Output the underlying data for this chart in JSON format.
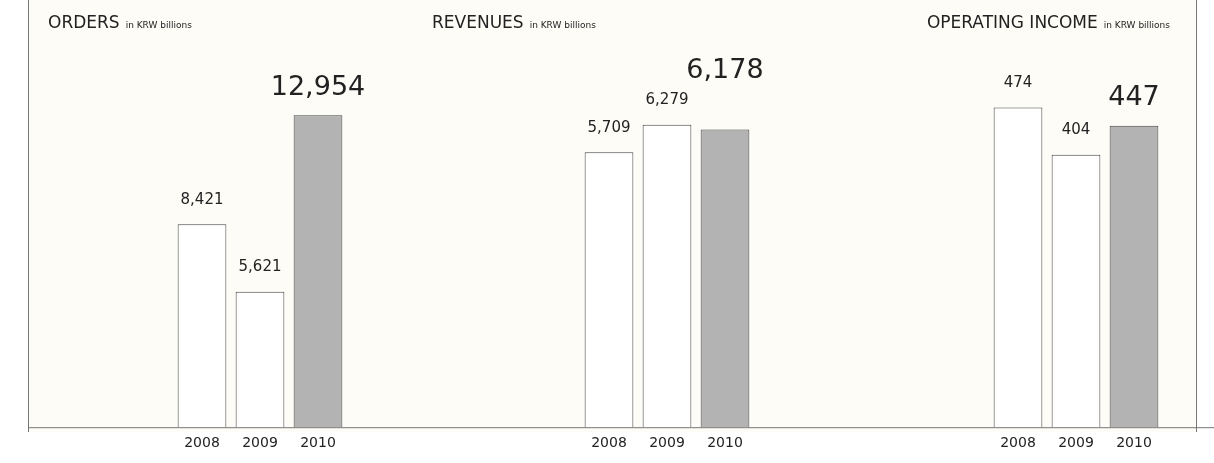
{
  "chart_data": [
    {
      "type": "bar",
      "title": "ORDERS",
      "subtitle": "in KRW billions",
      "categories": [
        "2008",
        "2009",
        "2010"
      ],
      "values": [
        8421,
        5621,
        12954
      ],
      "value_labels": [
        "8,421",
        "5,621",
        "12,954"
      ],
      "colors": [
        "#ffffff",
        "#ffffff",
        "#b3b3b3"
      ],
      "legend": false,
      "grid": false
    },
    {
      "type": "bar",
      "title": "REVENUES",
      "subtitle": "in KRW billions",
      "categories": [
        "2008",
        "2009",
        "2010"
      ],
      "values": [
        5709,
        6279,
        6178
      ],
      "value_labels": [
        "5,709",
        "6,279",
        "6,178"
      ],
      "colors": [
        "#ffffff",
        "#ffffff",
        "#b3b3b3"
      ],
      "legend": false,
      "grid": false
    },
    {
      "type": "bar",
      "title": "OPERATING INCOME",
      "subtitle": "in KRW billions",
      "categories": [
        "2008",
        "2009",
        "2010"
      ],
      "values": [
        474,
        404,
        447
      ],
      "colors": [
        "#ffffff",
        "#ffffff",
        "#b3b3b3"
      ],
      "data_labels": true,
      "legend": false,
      "grid": false
    }
  ]
}
